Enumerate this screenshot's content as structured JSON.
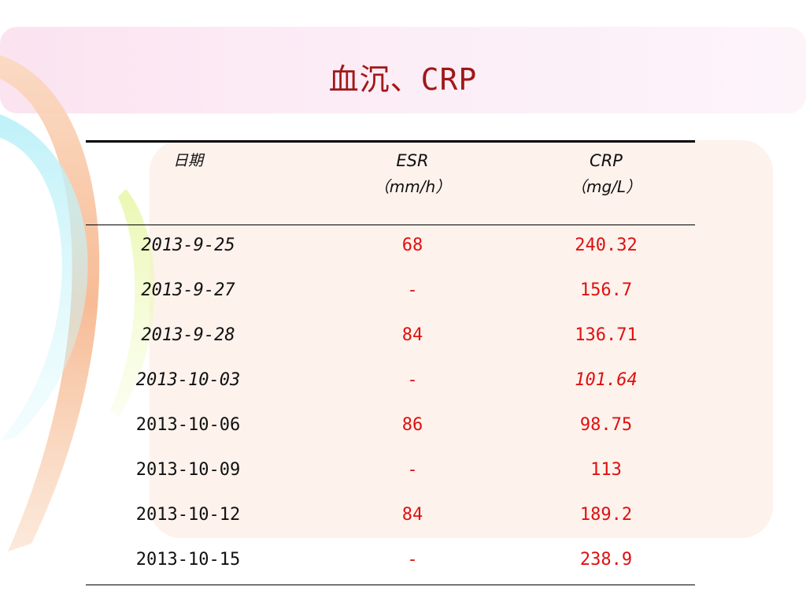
{
  "slide": {
    "title": "血沉、CRP"
  },
  "table": {
    "headers": {
      "date": "日期",
      "esr_name": "ESR",
      "esr_unit": "（mm/h）",
      "crp_name": "CRP",
      "crp_unit": "（mg/L）"
    },
    "rows": [
      {
        "date": "2013-9-25",
        "esr": "68",
        "crp": "240.32"
      },
      {
        "date": "2013-9-27",
        "esr": "-",
        "crp": "156.7"
      },
      {
        "date": "2013-9-28",
        "esr": "84",
        "crp": "136.71"
      },
      {
        "date": "2013-10-03",
        "esr": "-",
        "crp": "101.64"
      },
      {
        "date": "2013-10-06",
        "esr": "86",
        "crp": "98.75"
      },
      {
        "date": "2013-10-09",
        "esr": "-",
        "crp": "113"
      },
      {
        "date": "2013-10-12",
        "esr": "84",
        "crp": "189.2"
      },
      {
        "date": "2013-10-15",
        "esr": "-",
        "crp": "238.9"
      }
    ]
  },
  "colors": {
    "title": "#a01818",
    "value": "#e01010",
    "text": "#111111"
  }
}
